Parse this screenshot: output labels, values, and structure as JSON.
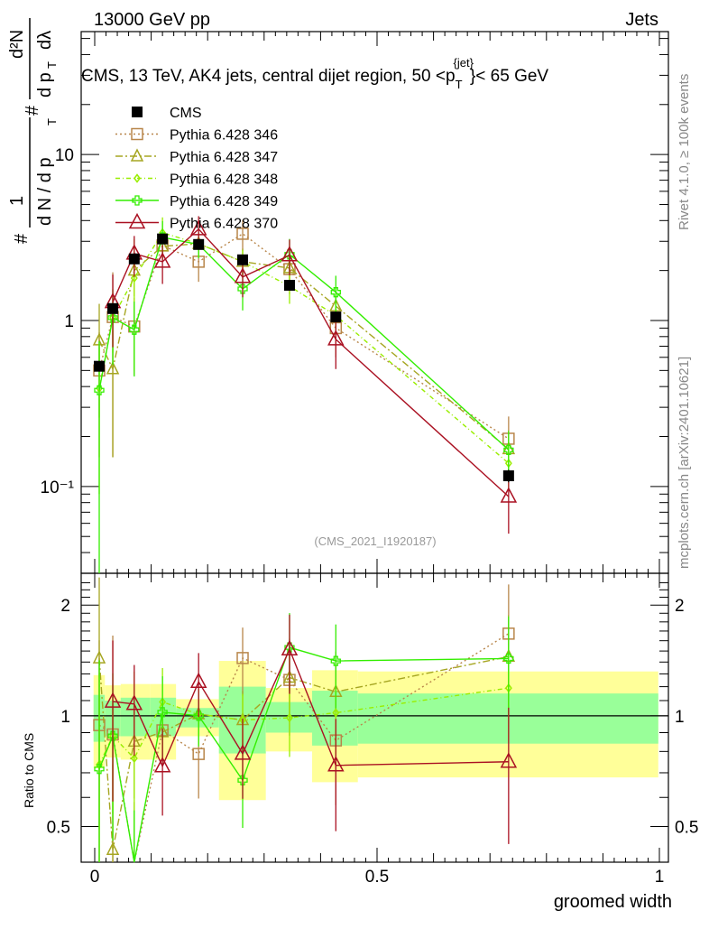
{
  "header": {
    "left": "13000 GeV pp",
    "right": "Jets"
  },
  "side_texts": {
    "rivet": "Rivet 4.1.0, ≥ 100k events",
    "mcplots": "mcplots.cern.ch [arXiv:2401.10621]"
  },
  "chart_data": [
    {
      "type": "line",
      "panel": "main",
      "title": "CMS, 13 TeV, AK4 jets, central dijet region, 50 <p_T^{jet}< 65 GeV",
      "title_parts": {
        "pre": "CMS, 13 TeV, AK4 jets, central dijet region, 50 <p",
        "sub": "T",
        "sup": "{jet}",
        "post": "}< 65 GeV"
      },
      "ylabel": "#frac{1}{#dN/dp_T} #frac{d^2N}{dp_T dλ}",
      "ylabel_parts": {
        "a": "#",
        "b": "1",
        "c": "d N / d p",
        "d": "T",
        "e": "#",
        "f": "d²N",
        "g": "d p",
        "h": "T",
        "i": "dλ"
      },
      "yscale": "log",
      "ylim": [
        0.03,
        55
      ],
      "ytick_labels": [
        {
          "value": 0.1,
          "label": "10⁻¹"
        },
        {
          "value": 1,
          "label": "1"
        },
        {
          "value": 10,
          "label": "10"
        }
      ],
      "xlim": [
        -0.02,
        1.0
      ],
      "watermark": "(CMS_2021_I1920187)",
      "legend_position": "top-left",
      "x": [
        0.008,
        0.032,
        0.07,
        0.12,
        0.184,
        0.262,
        0.345,
        0.427,
        0.733
      ],
      "series": [
        {
          "name": "CMS",
          "color": "#000000",
          "marker": "filled-square",
          "line": "none",
          "values": [
            0.53,
            1.18,
            2.35,
            3.1,
            2.87,
            2.32,
            1.63,
            1.05,
            0.116
          ],
          "errors": [
            0.03,
            0.06,
            0.12,
            0.15,
            0.12,
            0.12,
            0.08,
            0.06,
            0.01
          ]
        },
        {
          "name": "Pythia 6.428 346",
          "color": "#b8864a",
          "marker": "open-square",
          "line": "dotted",
          "values": [
            0.5,
            1.05,
            0.92,
            2.83,
            2.26,
            3.33,
            2.04,
            0.9,
            0.194
          ],
          "errors": [
            0.35,
            0.9,
            0.45,
            0.5,
            0.55,
            0.7,
            0.6,
            0.3,
            0.07
          ]
        },
        {
          "name": "Pythia 6.428 347",
          "color": "#a6a622",
          "marker": "open-triangle",
          "line": "dashdot",
          "values": [
            0.76,
            0.51,
            2.0,
            2.8,
            2.9,
            2.26,
            2.07,
            1.22,
            0.168
          ],
          "errors": [
            0.5,
            0.36,
            0.6,
            0.5,
            0.5,
            0.45,
            0.5,
            0.35,
            0.05
          ]
        },
        {
          "name": "Pythia 6.428 348",
          "color": "#99ee00",
          "marker": "open-diamond",
          "line": "dashdot-short",
          "values": [
            0.39,
            1.04,
            1.8,
            3.38,
            2.9,
            2.26,
            1.61,
            1.07,
            0.138
          ],
          "errors": [
            0.3,
            0.4,
            1.3,
            0.8,
            0.5,
            0.4,
            0.35,
            0.25,
            0.04
          ]
        },
        {
          "name": "Pythia 6.428 349",
          "color": "#33ee00",
          "marker": "open-cross",
          "line": "solid",
          "values": [
            0.38,
            1.04,
            0.88,
            3.17,
            2.87,
            1.55,
            2.5,
            1.48,
            0.166
          ],
          "errors": [
            0.37,
            0.5,
            0.42,
            0.8,
            0.5,
            0.4,
            0.6,
            0.38,
            0.05
          ]
        },
        {
          "name": "Pythia 6.428 370",
          "color": "#aa1122",
          "marker": "open-triangle-large",
          "line": "solid",
          "values": [
            null,
            1.29,
            2.53,
            2.26,
            3.55,
            1.83,
            2.47,
            0.77,
            0.087
          ],
          "errors": [
            null,
            0.6,
            0.7,
            0.6,
            0.7,
            0.45,
            0.6,
            0.26,
            0.035
          ]
        }
      ]
    },
    {
      "type": "area",
      "panel": "ratio",
      "ylabel": "Ratio to CMS",
      "yscale": "log",
      "ylim": [
        0.4,
        2.44
      ],
      "ytick_labels": [
        {
          "value": 0.5,
          "label": "0.5"
        },
        {
          "value": 1,
          "label": "1"
        },
        {
          "value": 2,
          "label": "2"
        }
      ],
      "xlabel": "groomed width",
      "xtick_labels": [
        {
          "value": 0,
          "label": "0"
        },
        {
          "value": 0.5,
          "label": "0.5"
        },
        {
          "value": 1,
          "label": "1"
        }
      ],
      "bin_edges": [
        -0.002,
        0.018,
        0.046,
        0.098,
        0.144,
        0.22,
        0.303,
        0.385,
        0.466,
        0.998
      ],
      "band_inner": {
        "color": "#99ff99",
        "low": [
          0.85,
          0.88,
          0.88,
          0.88,
          0.93,
          0.79,
          0.9,
          0.83,
          0.84
        ],
        "high": [
          1.14,
          1.1,
          1.12,
          1.12,
          1.05,
          1.2,
          1.09,
          1.17,
          1.15
        ]
      },
      "band_outer": {
        "color": "#ffff99",
        "low": [
          0.72,
          0.77,
          0.76,
          0.76,
          0.88,
          0.59,
          0.8,
          0.66,
          0.68
        ],
        "high": [
          1.29,
          1.21,
          1.22,
          1.22,
          1.11,
          1.41,
          1.19,
          1.33,
          1.32
        ]
      }
    }
  ]
}
